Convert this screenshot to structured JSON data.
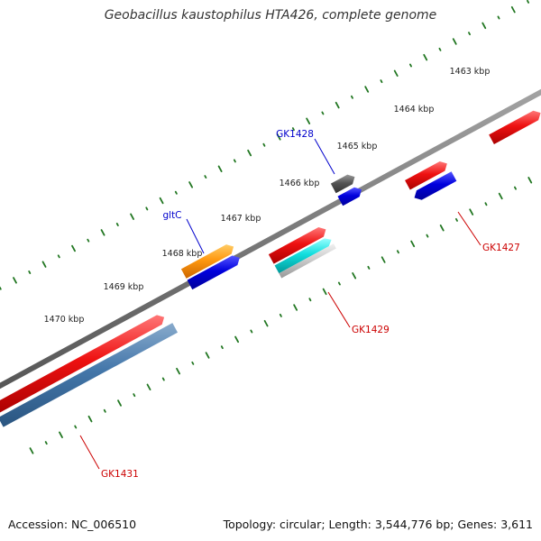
{
  "title": "Geobacillus kaustophilus HTA426, complete genome",
  "ticks": [
    "1463 kbp",
    "1464 kbp",
    "1465 kbp",
    "1466 kbp",
    "1467 kbp",
    "1468 kbp",
    "1469 kbp",
    "1470 kbp"
  ],
  "genes": [
    {
      "label": "GK1428",
      "color": "#0000cc"
    },
    {
      "label": "gltC",
      "color": "#0000cc"
    },
    {
      "label": "GK1427",
      "color": "#cc0000"
    },
    {
      "label": "GK1429",
      "color": "#cc0000"
    },
    {
      "label": "GK1431",
      "color": "#cc0000"
    }
  ],
  "colors": {
    "backbone": "#7a7a7a",
    "cds_red": "#ee1111",
    "cds_blue": "#0000dd",
    "cds_orange": "#ff9911",
    "cds_gray": "#555555",
    "cds_cyan": "#11dddd",
    "cds_steel": "#4477aa",
    "tick_green": "#227722"
  },
  "footer": {
    "accession_label": "Accession:",
    "accession": "NC_006510",
    "topology_label": "Topology:",
    "topology": "circular;",
    "length_label": "Length:",
    "length": "3,544,776 bp;",
    "genes_label": "Genes:",
    "genes_count": "3,611"
  }
}
